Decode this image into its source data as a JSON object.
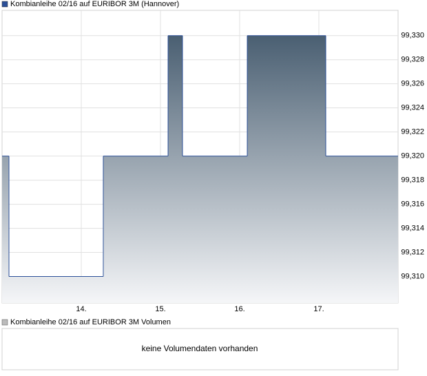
{
  "chart_data": [
    {
      "type": "line",
      "step": "after",
      "x": [
        13,
        13.087,
        14.278,
        15.096,
        15.278,
        16.096,
        17.087
      ],
      "series": [
        {
          "name": "Kombianleihe 02/16 auf EURIBOR 3M (Hannover)",
          "color": "#2b4f98",
          "values": [
            99.32,
            99.31,
            99.32,
            99.33,
            99.32,
            99.33,
            99.32
          ]
        }
      ],
      "fill_top": "#4a5f72",
      "fill_bottom": "#f5f6f8",
      "xlim": [
        13,
        18
      ],
      "xticks": [
        {
          "value": 14,
          "label": "14."
        },
        {
          "value": 15,
          "label": "15."
        },
        {
          "value": 16,
          "label": "16."
        },
        {
          "value": 17,
          "label": "17."
        }
      ],
      "ylim": [
        99.3078,
        99.3321
      ],
      "yticks": [
        {
          "value": 99.31,
          "label": "99,310"
        },
        {
          "value": 99.312,
          "label": "99,312"
        },
        {
          "value": 99.314,
          "label": "99,314"
        },
        {
          "value": 99.316,
          "label": "99,316"
        },
        {
          "value": 99.318,
          "label": "99,318"
        },
        {
          "value": 99.32,
          "label": "99,320"
        },
        {
          "value": 99.322,
          "label": "99,322"
        },
        {
          "value": 99.324,
          "label": "99,324"
        },
        {
          "value": 99.326,
          "label": "99,326"
        },
        {
          "value": 99.328,
          "label": "99,328"
        },
        {
          "value": 99.33,
          "label": "99,330"
        }
      ],
      "grid": true
    },
    {
      "type": "volume",
      "title": "Kombianleihe 02/16 auf EURIBOR 3M Volumen",
      "color": "#bbbbbb",
      "message": "keine Volumendaten vorhanden"
    }
  ]
}
